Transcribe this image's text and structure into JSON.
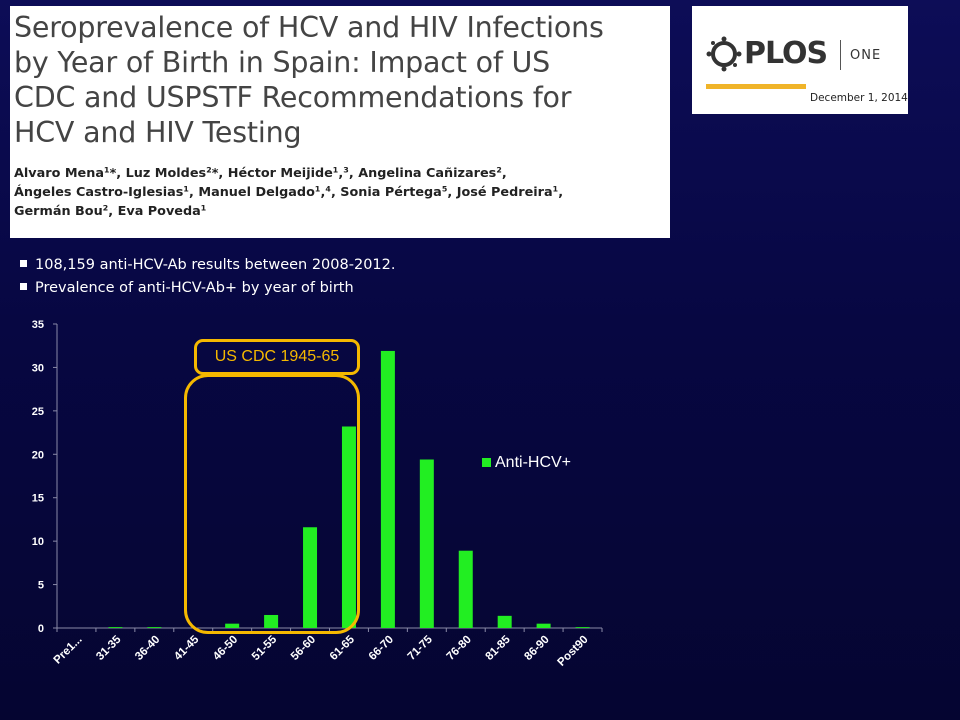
{
  "paper": {
    "title_lines": [
      "Seroprevalence of HCV and HIV Infections",
      "by Year of Birth in Spain: Impact of US",
      "CDC and USPSTF Recommendations for",
      "HCV and HIV Testing"
    ],
    "author_lines": [
      "Alvaro Mena¹*, Luz Moldes²*, Héctor Meijide¹,³, Angelina Cañizares²,",
      "Ángeles Castro-Iglesias¹, Manuel Delgado¹,⁴, Sonia Pértega⁵, José Pedreira¹,",
      "Germán Bou², Eva Poveda¹"
    ]
  },
  "journal": {
    "name": "PLOS",
    "sub": "ONE",
    "date": "December 1, 2014",
    "accent_color": "#f0b429"
  },
  "bullets": [
    "108,159 anti-HCV-Ab results between 2008-2012.",
    "Prevalence of anti-HCV-Ab+ by year of birth"
  ],
  "annotation": {
    "label": "US CDC 1945-65",
    "color": "#f5b800"
  },
  "chart_data": {
    "type": "bar",
    "categories": [
      "Pre1...",
      "31-35",
      "36-40",
      "41-45",
      "46-50",
      "51-55",
      "56-60",
      "61-65",
      "66-70",
      "71-75",
      "76-80",
      "81-85",
      "86-90",
      "Post90"
    ],
    "series": [
      {
        "name": "Anti-HCV+",
        "color": "#22ee22",
        "values": [
          0,
          0.1,
          0.1,
          0,
          0.5,
          1.5,
          11.6,
          23.2,
          31.9,
          19.4,
          8.9,
          1.4,
          0.5,
          0.1
        ]
      }
    ],
    "ylim": [
      0,
      35
    ],
    "yticks": [
      0,
      5,
      10,
      15,
      20,
      25,
      30,
      35
    ],
    "grid": false,
    "legend_position": "right"
  }
}
